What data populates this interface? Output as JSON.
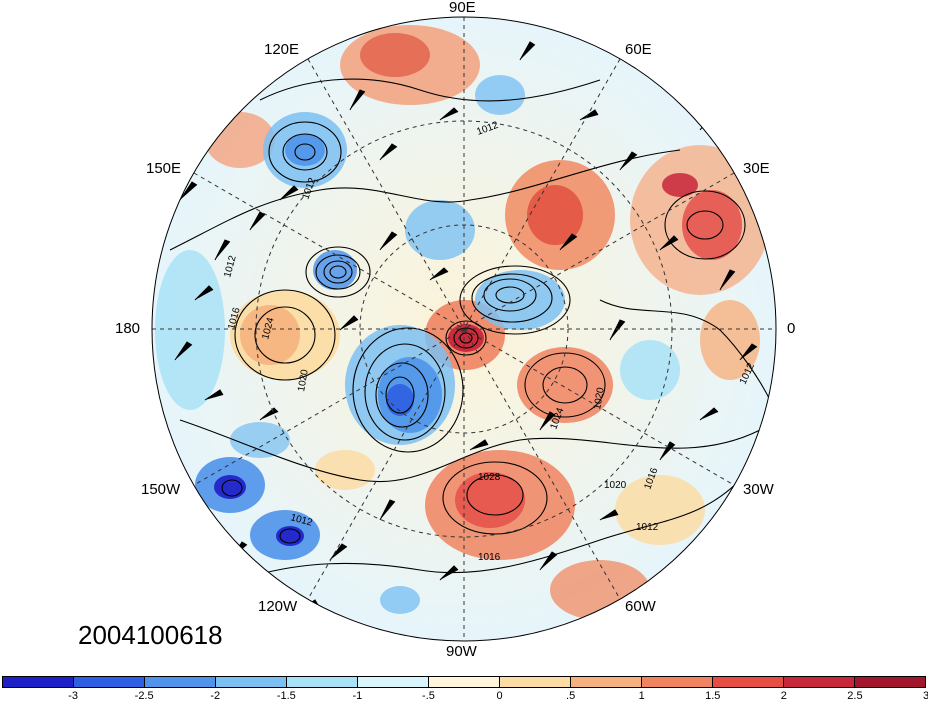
{
  "plot": {
    "timestamp": "2004100618",
    "projection": "north-polar-stereographic",
    "shading_field_range": [
      -3,
      3
    ],
    "contour_labels_visible": [
      "1012",
      "1016",
      "1020",
      "1024",
      "1028"
    ]
  },
  "longitude_labels": {
    "lon_90e": "90E",
    "lon_60e": "60E",
    "lon_120e": "120E",
    "lon_30e": "30E",
    "lon_150e": "150E",
    "lon_180": "180",
    "lon_0": "0",
    "lon_150w": "150W",
    "lon_30w": "30W",
    "lon_120w": "120W",
    "lon_60w": "60W",
    "lon_90w": "90W"
  },
  "colorbar": {
    "colors": [
      "#1f1fc8",
      "#2e5fe0",
      "#4f93ea",
      "#7cc0f2",
      "#a9e2f7",
      "#d8f5fb",
      "#fdf6dc",
      "#fbdca4",
      "#f6b27e",
      "#f08360",
      "#e44e45",
      "#c8263a",
      "#a1162c"
    ],
    "tick_labels": [
      "-3",
      "-2.5",
      "-2",
      "-1.5",
      "-1",
      "-.5",
      "0",
      ".5",
      "1",
      "1.5",
      "2",
      "2.5",
      "3"
    ]
  }
}
